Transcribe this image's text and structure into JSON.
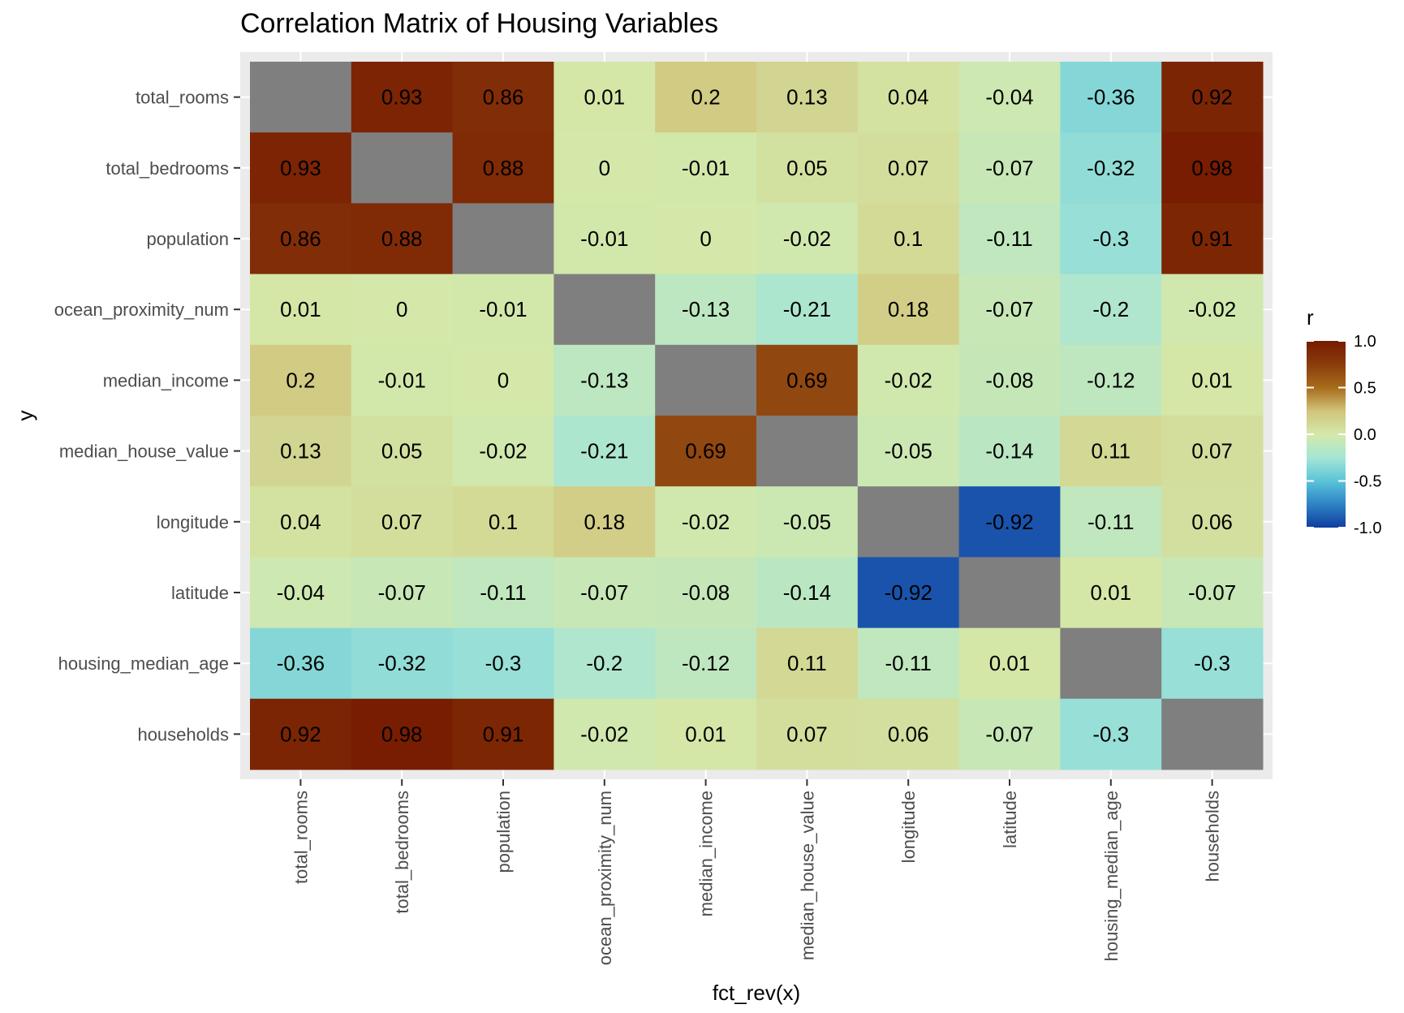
{
  "chart_data": {
    "type": "heatmap",
    "title": "Correlation Matrix of Housing Variables",
    "xlabel": "fct_rev(x)",
    "ylabel": "y",
    "x_categories": [
      "total_rooms",
      "total_bedrooms",
      "population",
      "ocean_proximity_num",
      "median_income",
      "median_house_value",
      "longitude",
      "latitude",
      "housing_median_age",
      "households"
    ],
    "y_categories": [
      "total_rooms",
      "total_bedrooms",
      "population",
      "ocean_proximity_num",
      "median_income",
      "median_house_value",
      "longitude",
      "latitude",
      "housing_median_age",
      "households"
    ],
    "values": [
      [
        null,
        0.93,
        0.86,
        0.01,
        0.2,
        0.13,
        0.04,
        -0.04,
        -0.36,
        0.92
      ],
      [
        0.93,
        null,
        0.88,
        0,
        -0.01,
        0.05,
        0.07,
        -0.07,
        -0.32,
        0.98
      ],
      [
        0.86,
        0.88,
        null,
        -0.01,
        0,
        -0.02,
        0.1,
        -0.11,
        -0.3,
        0.91
      ],
      [
        0.01,
        0,
        -0.01,
        null,
        -0.13,
        -0.21,
        0.18,
        -0.07,
        -0.2,
        -0.02
      ],
      [
        0.2,
        -0.01,
        0,
        -0.13,
        null,
        0.69,
        -0.02,
        -0.08,
        -0.12,
        0.01
      ],
      [
        0.13,
        0.05,
        -0.02,
        -0.21,
        0.69,
        null,
        -0.05,
        -0.14,
        0.11,
        0.07
      ],
      [
        0.04,
        0.07,
        0.1,
        0.18,
        -0.02,
        -0.05,
        null,
        -0.92,
        -0.11,
        0.06
      ],
      [
        -0.04,
        -0.07,
        -0.11,
        -0.07,
        -0.08,
        -0.14,
        -0.92,
        null,
        0.01,
        -0.07
      ],
      [
        -0.36,
        -0.32,
        -0.3,
        -0.2,
        -0.12,
        0.11,
        -0.11,
        0.01,
        null,
        -0.3
      ],
      [
        0.92,
        0.98,
        0.91,
        -0.02,
        0.01,
        0.07,
        0.06,
        -0.07,
        -0.3,
        null
      ]
    ],
    "na_color": "#7f7f7f",
    "legend": {
      "title": "r",
      "position": "right",
      "breaks": [
        1.0,
        0.5,
        0.0,
        -0.5,
        -1.0
      ],
      "break_labels": [
        "1.0",
        "0.5",
        "0.0",
        "-0.5",
        "-1.0"
      ],
      "limits": [
        -1,
        1
      ],
      "colors": [
        "#0f3d9e",
        "#2e83c6",
        "#5ac4d9",
        "#a6e6d6",
        "#d4e8a9",
        "#d1c47a",
        "#a86b1c",
        "#8a3c0c",
        "#761a00"
      ]
    },
    "grid": true
  }
}
